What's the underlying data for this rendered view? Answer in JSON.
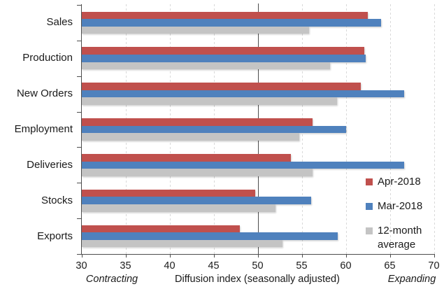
{
  "chart_data": {
    "type": "bar",
    "orientation": "horizontal",
    "categories": [
      "Sales",
      "Production",
      "New Orders",
      "Employment",
      "Deliveries",
      "Stocks",
      "Exports"
    ],
    "series": [
      {
        "name": "Apr-2018",
        "color": "#C0504D",
        "values": [
          62.5,
          62.1,
          61.7,
          56.2,
          53.8,
          49.7,
          48.0
        ]
      },
      {
        "name": "Mar-2018",
        "color": "#4F81BD",
        "values": [
          64.0,
          62.3,
          66.6,
          60.0,
          66.6,
          56.1,
          59.1
        ]
      },
      {
        "name": "12-month average",
        "color": "#C4C4C4",
        "values": [
          55.8,
          58.2,
          59.0,
          54.7,
          56.2,
          52.0,
          52.8
        ]
      }
    ],
    "xlim": [
      30,
      70
    ],
    "xticks": [
      30,
      35,
      40,
      45,
      50,
      55,
      60,
      65,
      70
    ],
    "reference_line": 50,
    "xlabel": "Diffusion index (seasonally adjusted)",
    "left_annotation": "Contracting",
    "right_annotation": "Expanding",
    "grid": "vertical-dashed",
    "legend_position": "inside-bottom-right",
    "legend": [
      {
        "lines": [
          "Apr-2018"
        ],
        "color": "#C0504D"
      },
      {
        "lines": [
          "Mar-2018"
        ],
        "color": "#4F81BD"
      },
      {
        "lines": [
          "12-month",
          "average"
        ],
        "color": "#C4C4C4"
      }
    ]
  },
  "colors": {
    "axis": "#4d4d4d",
    "gridline": "#d9d9d9",
    "reference_line": "#4d4d4d",
    "text": "#1a1a1a",
    "background": "#ffffff"
  }
}
